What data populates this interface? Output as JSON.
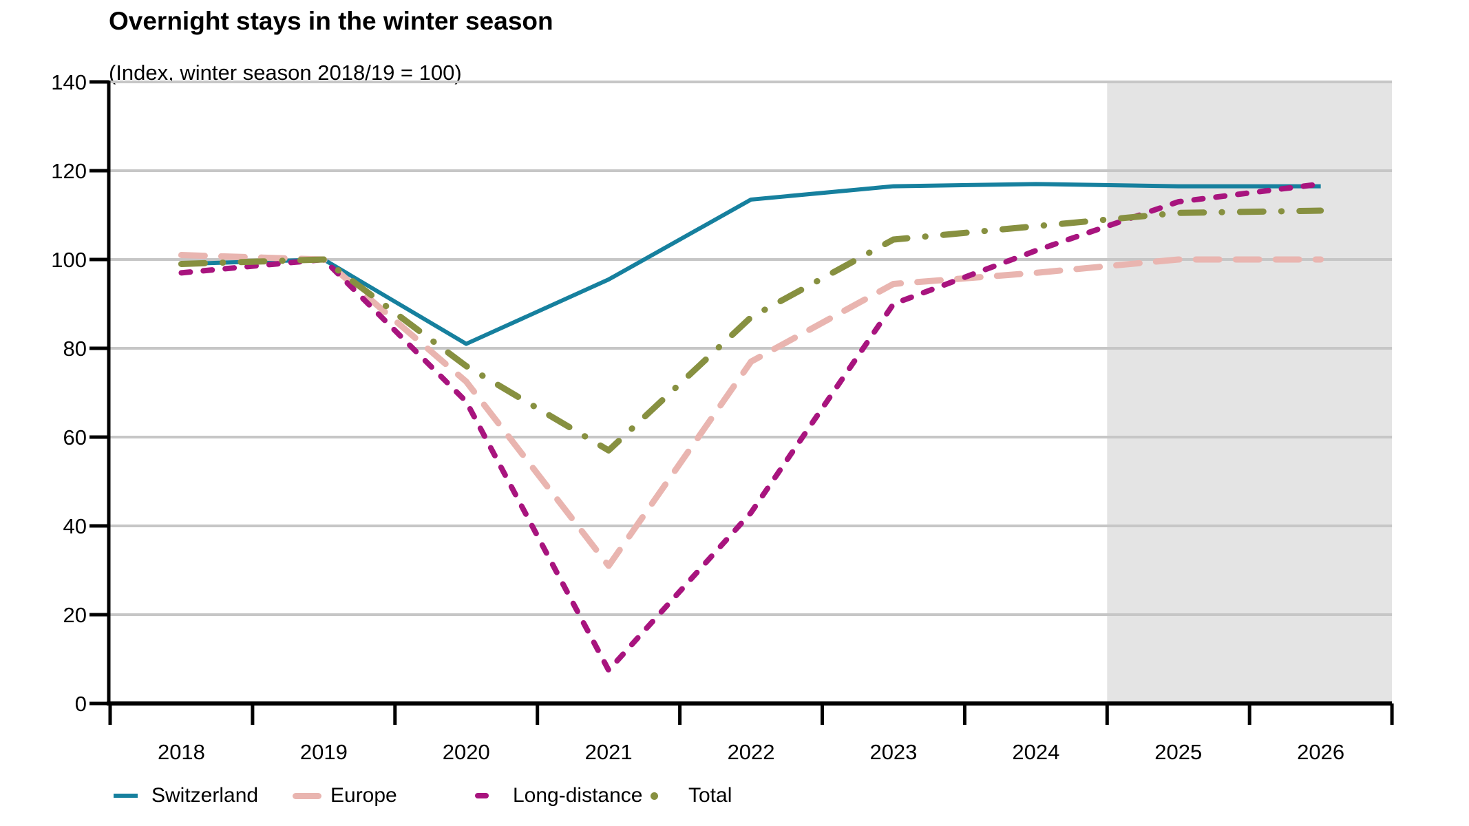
{
  "title": "Overnight stays in the winter season",
  "subtitle": "(Index, winter season 2018/19 = 100)",
  "colors": {
    "grid": "#c6c6c6",
    "axis": "#000000",
    "forecast_band": "#e4e4e4",
    "text": "#000000",
    "background": "#ffffff"
  },
  "chart_data": {
    "type": "line",
    "title": "Overnight stays in the winter season",
    "subtitle": "(Index, winter season 2018/19 = 100)",
    "x": [
      2018,
      2019,
      2020,
      2021,
      2022,
      2023,
      2024,
      2025,
      2026
    ],
    "series": [
      {
        "name": "Switzerland",
        "color": "#16809e",
        "dash": "solid",
        "width": 6,
        "values": [
          99,
          100,
          81,
          95.5,
          113.5,
          116.5,
          117,
          116.5,
          116.5
        ]
      },
      {
        "name": "Europe",
        "color": "#e9b5b0",
        "dash": "long-dash",
        "width": 9,
        "values": [
          101,
          100,
          72.5,
          31,
          77,
          94.5,
          97,
          100,
          100
        ]
      },
      {
        "name": "Long-distance",
        "color": "#a8147e",
        "dash": "short-dash",
        "width": 8,
        "values": [
          97,
          100,
          68,
          7.5,
          43,
          90,
          102,
          113,
          117
        ]
      },
      {
        "name": "Total",
        "color": "#879040",
        "dash": "dash-dot",
        "width": 9,
        "values": [
          99,
          100,
          76,
          57,
          87,
          104.5,
          107.5,
          110.5,
          111
        ]
      }
    ],
    "xlabel": "",
    "ylabel": "",
    "ylim": [
      0,
      140
    ],
    "yticks": [
      0,
      20,
      40,
      60,
      80,
      100,
      120,
      140
    ],
    "xlim": [
      2017.5,
      2026.5
    ],
    "grid": true,
    "forecast_band": {
      "from": 2024.5,
      "to": 2026.5
    },
    "legend_position": "bottom"
  }
}
